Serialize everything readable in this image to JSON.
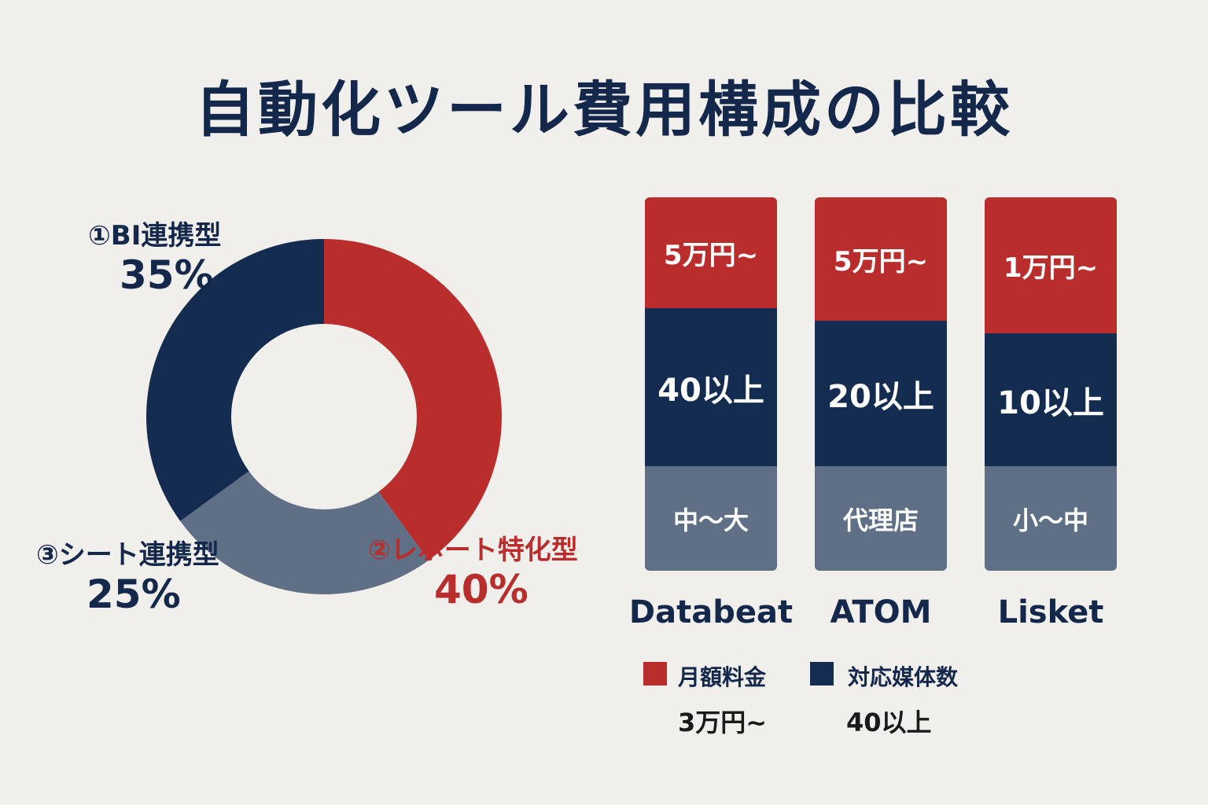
{
  "title": "自動化ツール費用構成の比較",
  "colors": {
    "red": "#b92d2d",
    "navy": "#142c4f",
    "slate": "#5f6f86",
    "title": "#14284b",
    "background": "#f1efeb"
  },
  "chart_data": [
    {
      "type": "pie",
      "variant": "donut",
      "segments": [
        {
          "name": "①BI連携型",
          "label": "35%",
          "value": 35,
          "color": "#142c4f"
        },
        {
          "name": "②レポート特化型",
          "label": "40%",
          "value": 40,
          "color": "#b92d2d"
        },
        {
          "name": "③シート連携型",
          "label": "25%",
          "value": 25,
          "color": "#5f6f86"
        }
      ]
    },
    {
      "type": "bar",
      "variant": "stacked",
      "categories": [
        "Databeat",
        "ATOM",
        "Lisket"
      ],
      "series": [
        {
          "name": "月額料金",
          "values": [
            "5万円~",
            "5万円~",
            "1万円~"
          ],
          "color": "#b92d2d"
        },
        {
          "name": "対応媒体数",
          "values": [
            "40以上",
            "20以上",
            "10以上"
          ],
          "color": "#142c4f"
        },
        {
          "values": [
            "中～大",
            "代理店",
            "小～中"
          ],
          "color": "#5f6f86"
        }
      ],
      "segment_shares": [
        [
          0.297,
          0.424,
          0.279
        ],
        [
          0.331,
          0.39,
          0.279
        ],
        [
          0.365,
          0.356,
          0.279
        ]
      ],
      "legend": [
        {
          "label": "月額料金",
          "note": "3万円~",
          "color": "#b92d2d"
        },
        {
          "label": "対応媒体数",
          "note": "40以上",
          "color": "#142c4f"
        }
      ]
    }
  ]
}
